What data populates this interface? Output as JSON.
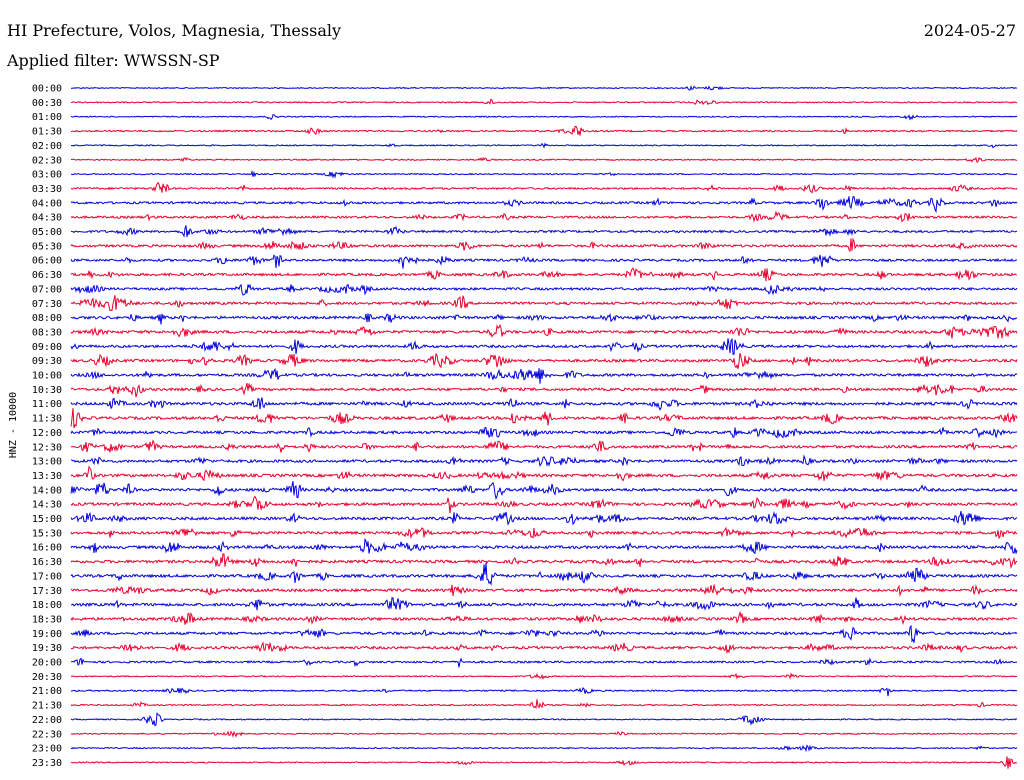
{
  "header": {
    "station": "HI Prefecture, Volos, Magnesia, Thessaly",
    "date": "2024-05-27",
    "filter": "Applied filter: WWSSN-SP"
  },
  "chart_data": {
    "type": "line",
    "subtype": "helicorder",
    "ylabel": "HNZ - 10000",
    "colors": [
      "#0000dd",
      "#e8002e"
    ],
    "time_labels": [
      "00:00",
      "00:30",
      "01:00",
      "01:30",
      "02:00",
      "02:30",
      "03:00",
      "03:30",
      "04:00",
      "04:30",
      "05:00",
      "05:30",
      "06:00",
      "06:30",
      "07:00",
      "07:30",
      "08:00",
      "08:30",
      "09:00",
      "09:30",
      "10:00",
      "10:30",
      "11:00",
      "11:30",
      "12:00",
      "12:30",
      "13:00",
      "13:30",
      "14:00",
      "14:30",
      "15:00",
      "15:30",
      "16:00",
      "16:30",
      "17:00",
      "17:30",
      "18:00",
      "18:30",
      "19:00",
      "19:30",
      "20:00",
      "20:30",
      "21:00",
      "21:30",
      "22:00",
      "22:30",
      "23:00",
      "23:30"
    ],
    "series": [
      {
        "activity": 0.1
      },
      {
        "activity": 0.18
      },
      {
        "activity": 0.1
      },
      {
        "activity": 0.28
      },
      {
        "activity": 0.15
      },
      {
        "activity": 0.18
      },
      {
        "activity": 0.15
      },
      {
        "activity": 0.4
      },
      {
        "activity": 0.55
      },
      {
        "activity": 0.55
      },
      {
        "activity": 0.55
      },
      {
        "activity": 0.65
      },
      {
        "activity": 0.6
      },
      {
        "activity": 0.7
      },
      {
        "activity": 0.65
      },
      {
        "activity": 0.7
      },
      {
        "activity": 0.75
      },
      {
        "activity": 0.8
      },
      {
        "activity": 0.7
      },
      {
        "activity": 0.75
      },
      {
        "activity": 0.75
      },
      {
        "activity": 0.7
      },
      {
        "activity": 0.8
      },
      {
        "activity": 0.8
      },
      {
        "activity": 0.75
      },
      {
        "activity": 0.75
      },
      {
        "activity": 0.75
      },
      {
        "activity": 0.8
      },
      {
        "activity": 0.8
      },
      {
        "activity": 0.8
      },
      {
        "activity": 0.8
      },
      {
        "activity": 0.75
      },
      {
        "activity": 0.8
      },
      {
        "activity": 0.8
      },
      {
        "activity": 0.8
      },
      {
        "activity": 0.8
      },
      {
        "activity": 0.8
      },
      {
        "activity": 0.75
      },
      {
        "activity": 0.7
      },
      {
        "activity": 0.7
      },
      {
        "activity": 0.45
      },
      {
        "activity": 0.15
      },
      {
        "activity": 0.25
      },
      {
        "activity": 0.2
      },
      {
        "activity": 0.15
      },
      {
        "activity": 0.15
      },
      {
        "activity": 0.15
      },
      {
        "activity": 0.15
      }
    ]
  }
}
